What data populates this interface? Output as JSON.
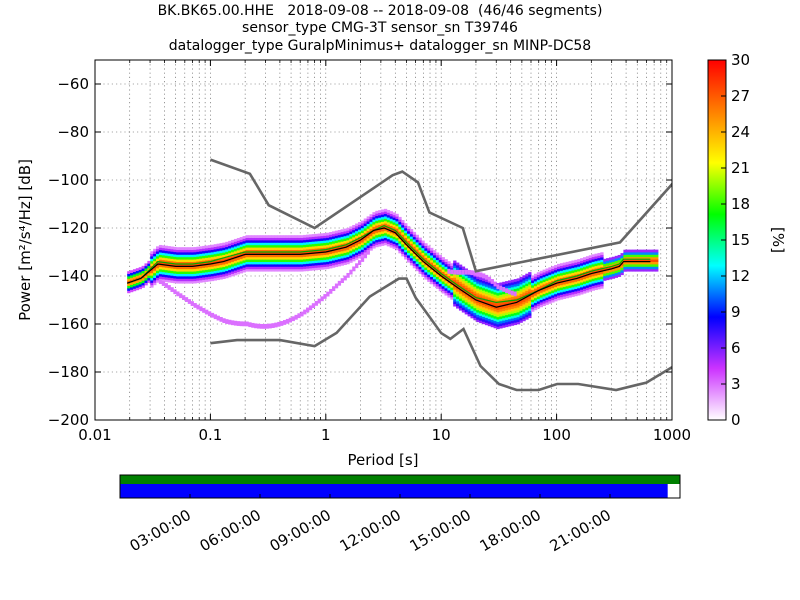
{
  "header": {
    "line1": "BK.BK65.00.HHE   2018-09-08 -- 2018-09-08  (46/46 segments)",
    "line2": "sensor_type CMG-3T sensor_sn T39746",
    "line3": "datalogger_type GuralpMinimus+ datalogger_sn MINP-DC58"
  },
  "chart_data": {
    "type": "heatmap",
    "xlabel": "Period [s]",
    "ylabel": "Power [m²/s⁴/Hz] [dB]",
    "xscale": "log",
    "xlim": [
      0.01,
      1000
    ],
    "ylim": [
      -200,
      -50
    ],
    "x_ticks": [
      {
        "v": 0.01,
        "label": "0.01"
      },
      {
        "v": 0.1,
        "label": "0.1"
      },
      {
        "v": 1,
        "label": "1"
      },
      {
        "v": 10,
        "label": "10"
      },
      {
        "v": 100,
        "label": "100"
      },
      {
        "v": 1000,
        "label": "1000"
      }
    ],
    "y_ticks": [
      {
        "v": -200,
        "label": "−200"
      },
      {
        "v": -180,
        "label": "−180"
      },
      {
        "v": -160,
        "label": "−160"
      },
      {
        "v": -140,
        "label": "−140"
      },
      {
        "v": -120,
        "label": "−120"
      },
      {
        "v": -100,
        "label": "−100"
      },
      {
        "v": -80,
        "label": "−80"
      },
      {
        "v": -60,
        "label": "−60"
      }
    ],
    "grid": true,
    "colorbar": {
      "label": "[%]",
      "min": 0,
      "max": 30,
      "ticks": [
        {
          "v": 0,
          "label": "0"
        },
        {
          "v": 3,
          "label": "3"
        },
        {
          "v": 6,
          "label": "6"
        },
        {
          "v": 9,
          "label": "9"
        },
        {
          "v": 12,
          "label": "12"
        },
        {
          "v": 15,
          "label": "15"
        },
        {
          "v": 18,
          "label": "18"
        },
        {
          "v": 21,
          "label": "21"
        },
        {
          "v": 24,
          "label": "24"
        },
        {
          "v": 27,
          "label": "27"
        },
        {
          "v": 30,
          "label": "30"
        }
      ],
      "colors": [
        "#ffffff",
        "#cc33ff",
        "#0000ff",
        "#00ffff",
        "#00ff00",
        "#ffff00",
        "#ff8000",
        "#ff0000"
      ]
    },
    "noise_models": [
      {
        "points": [
          [
            0.1,
            -91.5
          ],
          [
            0.22,
            -97.4
          ],
          [
            0.32,
            -110.5
          ],
          [
            0.8,
            -120
          ],
          [
            3.8,
            -98
          ],
          [
            4.6,
            -96.5
          ],
          [
            6.3,
            -101
          ],
          [
            7.9,
            -113.5
          ],
          [
            15.4,
            -120
          ],
          [
            20,
            -138
          ],
          [
            354,
            -126
          ],
          [
            10000,
            -48
          ]
        ]
      },
      {
        "points": [
          [
            0.1,
            -168
          ],
          [
            0.17,
            -166.7
          ],
          [
            0.4,
            -166.7
          ],
          [
            0.8,
            -169.2
          ],
          [
            1.24,
            -163.7
          ],
          [
            2.4,
            -148.6
          ],
          [
            4.3,
            -141.1
          ],
          [
            5,
            -141.1
          ],
          [
            6,
            -149
          ],
          [
            10,
            -163.8
          ],
          [
            12,
            -166.2
          ],
          [
            15.6,
            -162.1
          ],
          [
            21.9,
            -177.5
          ],
          [
            31.6,
            -185
          ],
          [
            45,
            -187.5
          ],
          [
            70,
            -187.5
          ],
          [
            101,
            -185
          ],
          [
            154,
            -185
          ],
          [
            328,
            -187.5
          ],
          [
            600,
            -184.4
          ],
          [
            1000,
            -178
          ]
        ]
      }
    ],
    "mode_curve": [
      [
        0.019,
        -143
      ],
      [
        0.025,
        -141
      ],
      [
        0.035,
        -135
      ],
      [
        0.05,
        -136
      ],
      [
        0.07,
        -136
      ],
      [
        0.1,
        -135
      ],
      [
        0.13,
        -134
      ],
      [
        0.2,
        -131
      ],
      [
        0.35,
        -131
      ],
      [
        0.6,
        -131
      ],
      [
        1,
        -130
      ],
      [
        1.5,
        -128
      ],
      [
        2,
        -125
      ],
      [
        2.6,
        -121
      ],
      [
        3.2,
        -120
      ],
      [
        4,
        -122
      ],
      [
        5,
        -127
      ],
      [
        7,
        -134
      ],
      [
        10,
        -140
      ],
      [
        14,
        -145
      ],
      [
        20,
        -150
      ],
      [
        30,
        -153
      ],
      [
        45,
        -151
      ],
      [
        70,
        -146
      ],
      [
        100,
        -143
      ],
      [
        150,
        -141
      ],
      [
        200,
        -139
      ],
      [
        300,
        -137
      ],
      [
        350,
        -136
      ],
      [
        380,
        -134
      ],
      [
        650,
        -134
      ]
    ],
    "mean_curve": [
      [
        0.019,
        -143
      ],
      [
        0.025,
        -141
      ],
      [
        0.035,
        -134
      ],
      [
        0.05,
        -135
      ],
      [
        0.07,
        -135
      ],
      [
        0.1,
        -134
      ],
      [
        0.14,
        -132
      ],
      [
        0.2,
        -130
      ],
      [
        0.35,
        -130
      ],
      [
        0.6,
        -130
      ],
      [
        1,
        -129
      ],
      [
        1.5,
        -127
      ],
      [
        2,
        -124
      ],
      [
        2.6,
        -121
      ],
      [
        3.2,
        -119
      ],
      [
        4,
        -121
      ],
      [
        5,
        -126
      ],
      [
        7,
        -133
      ],
      [
        10,
        -139
      ],
      [
        14,
        -144
      ],
      [
        20,
        -149
      ],
      [
        30,
        -151
      ],
      [
        45,
        -150
      ],
      [
        70,
        -146
      ],
      [
        100,
        -142
      ],
      [
        150,
        -140
      ],
      [
        200,
        -138
      ],
      [
        300,
        -136
      ],
      [
        350,
        -135
      ],
      [
        380,
        -133
      ],
      [
        650,
        -133
      ]
    ],
    "time_axis": {
      "tick_labels": [
        "03:00:00",
        "06:00:00",
        "09:00:00",
        "12:00:00",
        "15:00:00",
        "18:00:00",
        "21:00:00"
      ],
      "data_fraction": 1.0,
      "used_fraction": 0.978,
      "data_color": "#008000",
      "used_color": "#0000ff"
    }
  }
}
